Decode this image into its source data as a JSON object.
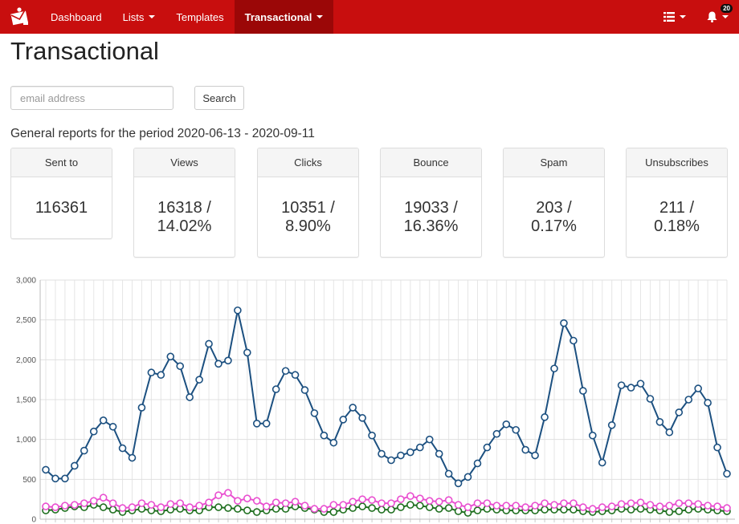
{
  "nav": {
    "items": [
      {
        "label": "Dashboard",
        "dropdown": false,
        "active": false
      },
      {
        "label": "Lists",
        "dropdown": true,
        "active": false
      },
      {
        "label": "Templates",
        "dropdown": false,
        "active": false
      },
      {
        "label": "Transactional",
        "dropdown": true,
        "active": true
      }
    ],
    "notification_count": "20",
    "colors": {
      "navbar": "#c80e0e",
      "active": "#9b0707"
    },
    "icons": [
      "mail-logo-icon",
      "list-menu-icon",
      "bell-icon"
    ]
  },
  "page": {
    "title": "Transactional",
    "search_placeholder": "email address",
    "search_value": "",
    "search_button": "Search",
    "period_text": "General reports for the period 2020-06-13 - 2020-09-11"
  },
  "stats": [
    {
      "label": "Sent to",
      "line1": "116361",
      "line2": ""
    },
    {
      "label": "Views",
      "line1": "16318 /",
      "line2": "14.02%"
    },
    {
      "label": "Clicks",
      "line1": "10351 /",
      "line2": "8.90%"
    },
    {
      "label": "Bounce",
      "line1": "19033 /",
      "line2": "16.36%"
    },
    {
      "label": "Spam",
      "line1": "203 /",
      "line2": "0.17%"
    },
    {
      "label": "Unsubscribes",
      "line1": "211 /",
      "line2": "0.18%"
    }
  ],
  "chart_data": {
    "type": "line",
    "ylim": [
      0,
      3000
    ],
    "yticks": [
      "0",
      "500",
      "1,000",
      "1,500",
      "2,000",
      "2,500",
      "3,000"
    ],
    "grid": true,
    "series": [
      {
        "color": "#1c5080",
        "values": [
          620,
          510,
          510,
          670,
          860,
          1100,
          1240,
          1160,
          890,
          770,
          1400,
          1840,
          1810,
          2040,
          1920,
          1530,
          1750,
          2200,
          1950,
          1990,
          2620,
          2090,
          1200,
          1200,
          1630,
          1860,
          1810,
          1620,
          1330,
          1050,
          960,
          1250,
          1400,
          1270,
          1050,
          820,
          740,
          800,
          840,
          900,
          1000,
          820,
          570,
          450,
          530,
          700,
          900,
          1070,
          1190,
          1120,
          870,
          800,
          1280,
          1890,
          2460,
          2240,
          1610,
          1050,
          710,
          1180,
          1680,
          1650,
          1700,
          1510,
          1220,
          1090,
          1340,
          1500,
          1640,
          1460,
          900,
          570
        ]
      },
      {
        "color": "#e94fd0",
        "values": [
          160,
          150,
          170,
          180,
          200,
          230,
          270,
          200,
          140,
          150,
          200,
          180,
          150,
          190,
          200,
          150,
          170,
          210,
          300,
          330,
          230,
          260,
          230,
          160,
          210,
          200,
          220,
          170,
          130,
          130,
          180,
          180,
          220,
          250,
          240,
          200,
          200,
          250,
          290,
          260,
          230,
          220,
          240,
          180,
          150,
          200,
          200,
          170,
          170,
          170,
          150,
          170,
          200,
          180,
          200,
          200,
          150,
          130,
          150,
          160,
          190,
          200,
          210,
          180,
          160,
          170,
          200,
          200,
          190,
          170,
          160,
          140
        ]
      },
      {
        "color": "#1f6f1f",
        "values": [
          110,
          120,
          140,
          160,
          150,
          180,
          150,
          120,
          90,
          110,
          130,
          110,
          100,
          120,
          130,
          110,
          110,
          150,
          150,
          140,
          130,
          110,
          90,
          110,
          130,
          130,
          160,
          140,
          120,
          90,
          90,
          120,
          140,
          160,
          140,
          120,
          120,
          150,
          180,
          170,
          150,
          130,
          140,
          100,
          80,
          110,
          130,
          120,
          110,
          110,
          110,
          110,
          120,
          120,
          120,
          120,
          100,
          90,
          100,
          110,
          130,
          120,
          130,
          120,
          110,
          90,
          100,
          120,
          130,
          120,
          110,
          100
        ]
      }
    ]
  }
}
